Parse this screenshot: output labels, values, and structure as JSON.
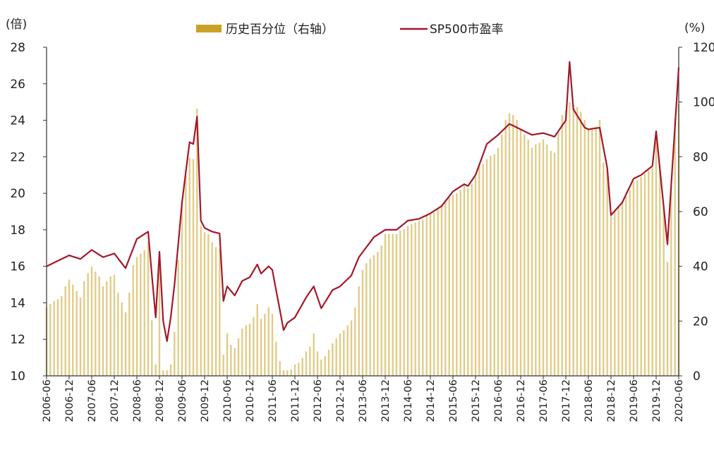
{
  "chart_data": {
    "type": "bar+line",
    "units": {
      "left": "(倍)",
      "right": "(%)"
    },
    "legend": [
      {
        "name": "历史百分位（右轴）",
        "kind": "bar",
        "color": "#C9A227"
      },
      {
        "name": "SP500市盈率",
        "kind": "line",
        "color": "#A3182B"
      }
    ],
    "legend_position": "top-center",
    "grid": false,
    "left_axis": {
      "min": 10,
      "max": 28,
      "ticks": [
        10,
        12,
        14,
        16,
        18,
        20,
        22,
        24,
        26,
        28
      ]
    },
    "right_axis": {
      "min": 0,
      "max": 120,
      "ticks": [
        0,
        20,
        40,
        60,
        80,
        100,
        120
      ]
    },
    "x_ticks": [
      "2006-06",
      "2006-12",
      "2007-06",
      "2007-12",
      "2008-06",
      "2008-12",
      "2009-06",
      "2009-12",
      "2010-06",
      "2010-12",
      "2011-06",
      "2011-12",
      "2012-06",
      "2012-12",
      "2013-06",
      "2013-12",
      "2014-06",
      "2014-12",
      "2015-06",
      "2015-12",
      "2016-06",
      "2016-12",
      "2017-06",
      "2017-12",
      "2018-06",
      "2018-12",
      "2019-06",
      "2019-12",
      "2020-06"
    ],
    "pe_keypoints": [
      [
        "2006-06",
        16.0
      ],
      [
        "2006-09",
        16.3
      ],
      [
        "2006-12",
        16.6
      ],
      [
        "2007-03",
        16.4
      ],
      [
        "2007-06",
        16.9
      ],
      [
        "2007-09",
        16.5
      ],
      [
        "2007-12",
        16.7
      ],
      [
        "2008-03",
        15.9
      ],
      [
        "2008-06",
        17.5
      ],
      [
        "2008-09",
        17.9
      ],
      [
        "2008-10",
        15.5
      ],
      [
        "2008-11",
        13.2
      ],
      [
        "2008-12",
        16.8
      ],
      [
        "2009-01",
        13.0
      ],
      [
        "2009-02",
        11.9
      ],
      [
        "2009-03",
        13.2
      ],
      [
        "2009-04",
        15.0
      ],
      [
        "2009-06",
        19.5
      ],
      [
        "2009-08",
        22.8
      ],
      [
        "2009-09",
        22.7
      ],
      [
        "2009-10",
        24.2
      ],
      [
        "2009-11",
        18.5
      ],
      [
        "2009-12",
        18.1
      ],
      [
        "2010-02",
        17.9
      ],
      [
        "2010-04",
        17.8
      ],
      [
        "2010-05",
        14.1
      ],
      [
        "2010-06",
        14.9
      ],
      [
        "2010-08",
        14.4
      ],
      [
        "2010-10",
        15.2
      ],
      [
        "2010-12",
        15.4
      ],
      [
        "2011-02",
        16.1
      ],
      [
        "2011-03",
        15.6
      ],
      [
        "2011-05",
        16.0
      ],
      [
        "2011-06",
        15.8
      ],
      [
        "2011-09",
        12.5
      ],
      [
        "2011-10",
        12.9
      ],
      [
        "2011-12",
        13.2
      ],
      [
        "2012-03",
        14.3
      ],
      [
        "2012-05",
        14.9
      ],
      [
        "2012-07",
        13.7
      ],
      [
        "2012-10",
        14.7
      ],
      [
        "2012-12",
        14.9
      ],
      [
        "2013-03",
        15.5
      ],
      [
        "2013-05",
        16.5
      ],
      [
        "2013-09",
        17.6
      ],
      [
        "2013-12",
        18.0
      ],
      [
        "2014-03",
        18.0
      ],
      [
        "2014-06",
        18.5
      ],
      [
        "2014-09",
        18.6
      ],
      [
        "2014-12",
        18.9
      ],
      [
        "2015-03",
        19.3
      ],
      [
        "2015-06",
        20.1
      ],
      [
        "2015-09",
        20.5
      ],
      [
        "2015-10",
        20.4
      ],
      [
        "2015-12",
        21.0
      ],
      [
        "2016-03",
        22.7
      ],
      [
        "2016-06",
        23.2
      ],
      [
        "2016-09",
        23.8
      ],
      [
        "2016-12",
        23.5
      ],
      [
        "2017-03",
        23.2
      ],
      [
        "2017-06",
        23.3
      ],
      [
        "2017-09",
        23.1
      ],
      [
        "2017-12",
        24.0
      ],
      [
        "2018-01",
        27.2
      ],
      [
        "2018-02",
        24.6
      ],
      [
        "2018-05",
        23.6
      ],
      [
        "2018-06",
        23.5
      ],
      [
        "2018-09",
        23.6
      ],
      [
        "2018-11",
        21.4
      ],
      [
        "2018-12",
        18.8
      ],
      [
        "2019-03",
        19.5
      ],
      [
        "2019-06",
        20.8
      ],
      [
        "2019-08",
        21.0
      ],
      [
        "2019-11",
        21.5
      ],
      [
        "2019-12",
        23.4
      ],
      [
        "2020-03",
        17.2
      ],
      [
        "2020-06",
        26.9
      ]
    ]
  }
}
